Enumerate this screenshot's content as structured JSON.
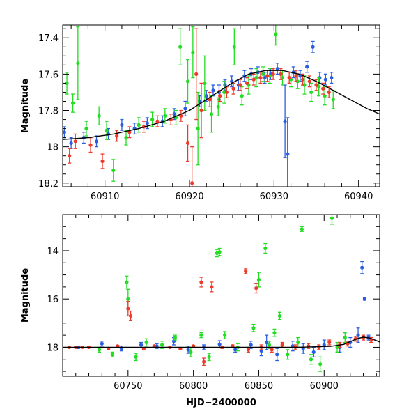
{
  "chart_data": [
    {
      "type": "scatter",
      "panel": "top",
      "xlabel": "",
      "ylabel": "Magnitude",
      "xlim": [
        60905,
        60942.5
      ],
      "ylim": [
        18.22,
        17.33
      ],
      "y_inverted": true,
      "x_ticks_major": [
        60910,
        60920,
        60930,
        60940
      ],
      "x_tick_labels": [
        "60910",
        "60920",
        "60930",
        "60940"
      ],
      "x_ticks_minor_step": 2,
      "y_ticks_major": [
        17.4,
        17.6,
        17.8,
        18,
        18.2
      ],
      "y_tick_labels": [
        "17.4",
        "17.6",
        "17.8",
        "18",
        "18.2"
      ],
      "y_ticks_minor_step": 0.05,
      "grid": false,
      "legend": "none",
      "model_curve": {
        "color": "#000000",
        "x": [
          60905,
          60908,
          60911,
          60914,
          60917,
          60920,
          60923,
          60925,
          60927,
          60929,
          60931,
          60933,
          60935,
          60937,
          60939,
          60941,
          60942.5
        ],
        "y": [
          17.96,
          17.95,
          17.93,
          17.9,
          17.86,
          17.8,
          17.71,
          17.65,
          17.6,
          17.58,
          17.58,
          17.6,
          17.64,
          17.69,
          17.74,
          17.79,
          17.82
        ]
      },
      "series": [
        {
          "color": "#2a5ee0",
          "x": [
            60905.2,
            60906.0,
            60907.5,
            60909.0,
            60910.4,
            60912.0,
            60913.5,
            60915.0,
            60916.8,
            60918.2,
            60919.5,
            60921.2,
            60922.0,
            60922.8,
            60923.5,
            60924.2,
            60925.0,
            60925.8,
            60926.5,
            60927.3,
            60928.1,
            60928.9,
            60929.6,
            60930.4,
            60931.3,
            60931.6,
            60932.3,
            60933.1,
            60933.9,
            60934.6,
            60935.4,
            60936.1,
            60936.8
          ],
          "y": [
            17.92,
            17.98,
            17.95,
            17.97,
            17.93,
            17.88,
            17.9,
            17.87,
            17.86,
            17.82,
            17.79,
            17.75,
            17.72,
            17.69,
            17.7,
            17.66,
            17.64,
            17.66,
            17.61,
            17.6,
            17.59,
            17.62,
            17.6,
            17.57,
            17.86,
            18.04,
            17.59,
            17.61,
            17.56,
            17.45,
            17.62,
            17.63,
            17.62
          ],
          "err": [
            0.03,
            0.03,
            0.03,
            0.03,
            0.03,
            0.03,
            0.03,
            0.03,
            0.03,
            0.03,
            0.04,
            0.03,
            0.03,
            0.03,
            0.04,
            0.03,
            0.03,
            0.03,
            0.03,
            0.03,
            0.03,
            0.03,
            0.03,
            0.03,
            0.2,
            0.2,
            0.03,
            0.03,
            0.03,
            0.03,
            0.03,
            0.03,
            0.03
          ]
        },
        {
          "color": "#22dd22",
          "x": [
            60905.5,
            60906.2,
            60906.8,
            60907.8,
            60909.3,
            60910.2,
            60911.0,
            60912.5,
            60914.0,
            60915.6,
            60917.1,
            60918.4,
            60918.9,
            60919.8,
            60920.4,
            60921.0,
            60921.8,
            60922.6,
            60923.4,
            60924.1,
            60925.3,
            60926.2,
            60927.0,
            60927.9,
            60928.7,
            60929.5,
            60930.2,
            60931.0,
            60932.0,
            60932.8,
            60933.6,
            60934.4,
            60935.3,
            60936.0,
            60937.0
          ],
          "y": [
            17.65,
            17.76,
            17.54,
            17.9,
            17.83,
            17.91,
            18.13,
            17.95,
            17.88,
            17.85,
            17.83,
            17.84,
            17.45,
            17.64,
            17.48,
            17.9,
            17.65,
            17.82,
            17.78,
            17.7,
            17.45,
            17.72,
            17.66,
            17.62,
            17.6,
            17.61,
            17.38,
            17.62,
            17.63,
            17.64,
            17.66,
            17.7,
            17.67,
            17.72,
            17.74
          ],
          "err": [
            0.06,
            0.05,
            0.2,
            0.04,
            0.05,
            0.05,
            0.06,
            0.04,
            0.04,
            0.04,
            0.04,
            0.04,
            0.1,
            0.12,
            0.14,
            0.2,
            0.15,
            0.1,
            0.05,
            0.06,
            0.1,
            0.05,
            0.05,
            0.05,
            0.04,
            0.04,
            0.06,
            0.04,
            0.04,
            0.04,
            0.05,
            0.05,
            0.05,
            0.05,
            0.05
          ]
        },
        {
          "color": "#ee3a2a",
          "x": [
            60905.8,
            60906.5,
            60908.3,
            60909.7,
            60911.4,
            60912.9,
            60914.6,
            60916.2,
            60917.8,
            60919.0,
            60919.8,
            60920.3,
            60920.8,
            60921.4,
            60922.4,
            60923.6,
            60924.4,
            60925.2,
            60926.0,
            60926.8,
            60927.6,
            60928.4,
            60929.2,
            60929.9,
            60930.8,
            60931.8,
            60932.6,
            60933.4,
            60934.2,
            60935.0,
            60935.8,
            60936.5
          ],
          "y": [
            18.05,
            17.97,
            17.99,
            18.08,
            17.94,
            17.92,
            17.89,
            17.86,
            17.85,
            17.83,
            17.98,
            18.2,
            17.6,
            17.8,
            17.74,
            17.72,
            17.7,
            17.68,
            17.66,
            17.65,
            17.63,
            17.62,
            17.61,
            17.6,
            17.6,
            17.62,
            17.61,
            17.63,
            17.64,
            17.66,
            17.68,
            17.7
          ],
          "err": [
            0.04,
            0.04,
            0.04,
            0.04,
            0.03,
            0.03,
            0.03,
            0.03,
            0.03,
            0.03,
            0.1,
            0.2,
            0.25,
            0.15,
            0.04,
            0.03,
            0.03,
            0.03,
            0.03,
            0.03,
            0.03,
            0.03,
            0.03,
            0.03,
            0.03,
            0.03,
            0.03,
            0.03,
            0.03,
            0.03,
            0.03,
            0.03
          ]
        }
      ]
    },
    {
      "type": "scatter",
      "panel": "bottom",
      "xlabel": "HJD−2400000",
      "ylabel": "Magnitude",
      "xlim": [
        60700,
        60942.5
      ],
      "ylim": [
        19.2,
        12.5
      ],
      "y_inverted": true,
      "x_ticks_major": [
        60750,
        60800,
        60850,
        60900
      ],
      "x_tick_labels": [
        "60750",
        "60800",
        "60850",
        "60900"
      ],
      "x_ticks_minor_step": 10,
      "y_ticks_major": [
        14,
        16,
        18
      ],
      "y_tick_labels": [
        "14",
        "16",
        "18"
      ],
      "y_ticks_minor_step": 0.5,
      "grid": false,
      "legend": "none",
      "model_curve": {
        "color": "#000000",
        "x": [
          60700,
          60800,
          60880,
          60905,
          60915,
          60925,
          60930,
          60935,
          60942.5
        ],
        "y": [
          18.0,
          18.0,
          18.0,
          17.96,
          17.88,
          17.65,
          17.58,
          17.62,
          17.78
        ]
      },
      "series": [
        {
          "color": "#2a5ee0",
          "x": [
            60712,
            60730,
            60745,
            60760,
            60772,
            60785,
            60796,
            60808,
            60820,
            60832,
            60844,
            60852,
            60856,
            60864,
            60876,
            60884,
            60892,
            60900,
            60912,
            60920,
            60926,
            60929,
            60931,
            60934,
            60936
          ],
          "y": [
            18.0,
            17.85,
            18.05,
            17.9,
            17.95,
            17.75,
            18.1,
            18.0,
            17.88,
            18.1,
            17.9,
            18.15,
            17.8,
            18.3,
            17.95,
            18.05,
            18.2,
            17.9,
            18.0,
            17.8,
            17.5,
            14.7,
            16.0,
            17.6,
            17.7
          ],
          "err": [
            0.05,
            0.1,
            0.1,
            0.1,
            0.1,
            0.15,
            0.15,
            0.1,
            0.15,
            0.1,
            0.15,
            0.2,
            0.3,
            0.25,
            0.2,
            0.2,
            0.2,
            0.2,
            0.2,
            0.2,
            0.3,
            0.25,
            0.05,
            0.1,
            0.1
          ]
        },
        {
          "color": "#22dd22",
          "x": [
            60728,
            60738,
            60749,
            60750,
            60756,
            60764,
            60776,
            60786,
            60798,
            60806,
            60812,
            60818,
            60820,
            60824,
            60834,
            60846,
            60850,
            60855,
            60858,
            60862,
            60866,
            60872,
            60880,
            60883,
            60890,
            60897,
            60906,
            60910,
            60916
          ],
          "y": [
            18.1,
            18.3,
            15.3,
            16.0,
            18.4,
            17.8,
            17.9,
            17.6,
            18.2,
            17.5,
            18.4,
            14.1,
            14.05,
            17.5,
            18.0,
            17.2,
            15.2,
            13.9,
            17.9,
            17.4,
            16.7,
            18.3,
            17.8,
            13.1,
            18.5,
            18.7,
            12.65,
            18.0,
            17.6
          ],
          "err": [
            0.1,
            0.1,
            0.25,
            0.4,
            0.15,
            0.15,
            0.15,
            0.1,
            0.2,
            0.1,
            0.15,
            0.15,
            0.15,
            0.15,
            0.15,
            0.15,
            0.3,
            0.2,
            0.15,
            0.15,
            0.15,
            0.2,
            0.2,
            0.1,
            0.2,
            0.3,
            0.25,
            0.2,
            0.2
          ]
        },
        {
          "color": "#ee3a2a",
          "x": [
            60705,
            60710,
            60715,
            60720,
            60735,
            60742,
            60750,
            60752,
            60762,
            60770,
            60782,
            60790,
            60800,
            60806,
            60808,
            60814,
            60822,
            60830,
            60840,
            60842,
            60848,
            60852,
            60860,
            60868,
            60878,
            60888,
            60896,
            60904,
            60912,
            60918,
            60924,
            60930,
            60936
          ],
          "y": [
            18.0,
            18.0,
            18.0,
            18.0,
            18.05,
            17.95,
            16.4,
            16.7,
            18.05,
            17.95,
            18.0,
            18.05,
            17.95,
            15.3,
            18.6,
            15.5,
            18.0,
            17.95,
            14.85,
            18.1,
            15.55,
            18.0,
            18.1,
            17.9,
            18.0,
            17.95,
            18.0,
            17.8,
            17.9,
            17.85,
            17.65,
            17.6,
            17.7
          ],
          "err": [
            0.02,
            0.02,
            0.02,
            0.02,
            0.03,
            0.03,
            0.3,
            0.2,
            0.03,
            0.03,
            0.03,
            0.03,
            0.03,
            0.2,
            0.15,
            0.2,
            0.05,
            0.05,
            0.1,
            0.1,
            0.2,
            0.1,
            0.1,
            0.1,
            0.1,
            0.1,
            0.1,
            0.1,
            0.1,
            0.1,
            0.1,
            0.1,
            0.1
          ]
        }
      ]
    }
  ]
}
